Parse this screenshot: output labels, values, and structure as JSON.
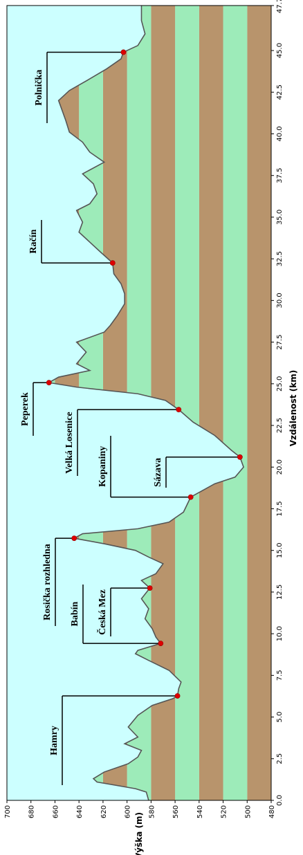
{
  "chart_data": {
    "type": "area",
    "xlabel": "Vzdálenost (km)",
    "ylabel": "Výška (m)",
    "xlim": [
      0,
      47.7
    ],
    "ylim": [
      480,
      700
    ],
    "xticks": [
      {
        "value": 0,
        "label": "0.0"
      },
      2.5,
      {
        "value": 5,
        "label": "5.0"
      },
      7.5,
      {
        "value": 10,
        "label": "10.0"
      },
      12.5,
      {
        "value": 15,
        "label": "15.0"
      },
      17.5,
      {
        "value": 20,
        "label": "20.0"
      },
      22.5,
      {
        "value": 25,
        "label": "25.0"
      },
      27.5,
      {
        "value": 30,
        "label": "30.0"
      },
      32.5,
      {
        "value": 35,
        "label": "35.0"
      },
      37.5,
      {
        "value": 40,
        "label": "40.0"
      },
      42.5,
      {
        "value": 45,
        "label": "45.0"
      },
      47.7
    ],
    "yticks": [
      480,
      500,
      520,
      540,
      560,
      580,
      600,
      620,
      640,
      660,
      680,
      700
    ],
    "background": "#ccffff",
    "band_colors": [
      "#b8946c",
      "#9debb9"
    ],
    "color": "#555555",
    "marker_color": "#dd0000",
    "x": [
      0,
      0.5,
      0.7,
      1.1,
      1.3,
      1.7,
      2.2,
      2.6,
      3.0,
      3.4,
      3.8,
      4.4,
      5.1,
      5.7,
      6.1,
      6.27,
      6.7,
      7.1,
      7.8,
      8.4,
      8.8,
      9.0,
      9.42,
      9.8,
      10.3,
      10.9,
      11.5,
      12.1,
      12.74,
      13.2,
      13.6,
      14.2,
      14.6,
      15.0,
      15.4,
      15.73,
      16.0,
      16.3,
      16.7,
      17.3,
      18.2,
      19.0,
      19.4,
      20.0,
      20.6,
      21.0,
      21.9,
      22.7,
      23.45,
      24.0,
      24.4,
      24.8,
      25.07,
      25.4,
      25.8,
      26.2,
      26.9,
      27.5,
      28.1,
      28.5,
      29.1,
      29.8,
      30.4,
      31.0,
      31.6,
      32.25,
      32.9,
      33.5,
      34.1,
      34.7,
      35.4,
      35.8,
      36.4,
      37.0,
      37.6,
      38.3,
      38.9,
      39.5,
      40.1,
      40.8,
      41.4,
      42.0,
      42.6,
      43.3,
      43.9,
      44.5,
      44.9,
      45.3,
      46.0,
      46.8,
      47.7
    ],
    "values": [
      582,
      584,
      593,
      625,
      628,
      619,
      599,
      591,
      588,
      602,
      591,
      599,
      591,
      579,
      562,
      558,
      557,
      555,
      565,
      582,
      593,
      591,
      572,
      576,
      579,
      585,
      582,
      588,
      581,
      588,
      576,
      570,
      582,
      593,
      619,
      644,
      637,
      591,
      565,
      553,
      547,
      527,
      510,
      503,
      506,
      513,
      527,
      545,
      557,
      568,
      591,
      642,
      665,
      657,
      631,
      642,
      634,
      642,
      619,
      614,
      608,
      602,
      602,
      605,
      611,
      612,
      622,
      631,
      640,
      637,
      642,
      631,
      625,
      628,
      637,
      619,
      631,
      637,
      648,
      651,
      654,
      657,
      648,
      631,
      617,
      605,
      603,
      591,
      585,
      588,
      588
    ],
    "annotations": [
      {
        "text": "Hamry",
        "x": 6.27,
        "y": 558
      },
      {
        "text": "Babín",
        "x": 9.42,
        "y": 572
      },
      {
        "text": "Česká Mez",
        "x": 12.74,
        "y": 581
      },
      {
        "text": "Rosička rozhledna",
        "x": 15.73,
        "y": 644
      },
      {
        "text": "Kopaniny",
        "x": 18.2,
        "y": 547
      },
      {
        "text": "Sázava",
        "x": 20.6,
        "y": 506
      },
      {
        "text": "Velká Losenice",
        "x": 23.45,
        "y": 557
      },
      {
        "text": "Peperek",
        "x": 25.07,
        "y": 665
      },
      {
        "text": "Račín",
        "x": 32.25,
        "y": 612
      },
      {
        "text": "Polnička",
        "x": 44.9,
        "y": 603
      }
    ]
  }
}
